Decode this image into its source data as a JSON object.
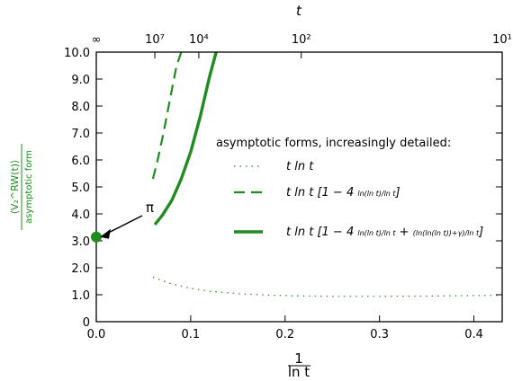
{
  "chart_data": {
    "type": "line",
    "xlabel": {
      "num": "1",
      "den": "ln t"
    },
    "top_xlabel": "t",
    "ylabel": {
      "num": "⟨V₂^RW(t)⟩",
      "den": "asymptotic form"
    },
    "xlim": [
      0.0,
      0.43
    ],
    "ylim": [
      0.0,
      10.0
    ],
    "x_ticks": [
      "0.0",
      "0.1",
      "0.2",
      "0.3",
      "0.4"
    ],
    "y_ticks": [
      "0",
      "1.0",
      "2.0",
      "3.0",
      "4.0",
      "5.0",
      "6.0",
      "7.0",
      "8.0",
      "9.0",
      "10.0"
    ],
    "top_ticks": [
      {
        "label": "∞",
        "x": 0.0
      },
      {
        "label": "10⁷",
        "x": 0.062
      },
      {
        "label": "10⁴",
        "x": 0.1086
      },
      {
        "label": "10²",
        "x": 0.2171
      },
      {
        "label": "10¹",
        "x": 0.4343
      }
    ],
    "legend_title": "asymptotic forms, increasingly detailed:",
    "legend": [
      {
        "style": "dotted",
        "label": "t ln t"
      },
      {
        "style": "dashed",
        "label": "t ln t [1 − 4 ln(ln t)/ln t]"
      },
      {
        "style": "solid",
        "label": "t ln t [1 − 4 ln(ln t)/ln t + (ln(ln(ln t))+γ)/ln t]"
      }
    ],
    "annotation": {
      "text": "π",
      "x": 0.0,
      "y": 3.1416
    },
    "color": "#1e8c1e",
    "series": [
      {
        "style": "dotted",
        "width": 1.2,
        "x": [
          0.06,
          0.08,
          0.1,
          0.12,
          0.15,
          0.18,
          0.21,
          0.25,
          0.3,
          0.35,
          0.4,
          0.43
        ],
        "y": [
          1.65,
          1.4,
          1.24,
          1.13,
          1.04,
          0.99,
          0.96,
          0.94,
          0.94,
          0.95,
          0.97,
          0.98
        ]
      },
      {
        "style": "dashed",
        "width": 2.2,
        "x": [
          0.06,
          0.065,
          0.07,
          0.075,
          0.08,
          0.085,
          0.09
        ],
        "y": [
          5.3,
          6.0,
          6.8,
          7.7,
          8.6,
          9.5,
          10.0
        ]
      },
      {
        "style": "solid",
        "width": 3.4,
        "x": [
          0.062,
          0.07,
          0.08,
          0.09,
          0.1,
          0.11,
          0.12,
          0.127
        ],
        "y": [
          3.6,
          3.95,
          4.5,
          5.3,
          6.3,
          7.6,
          9.1,
          10.0
        ]
      }
    ],
    "grid": false
  }
}
